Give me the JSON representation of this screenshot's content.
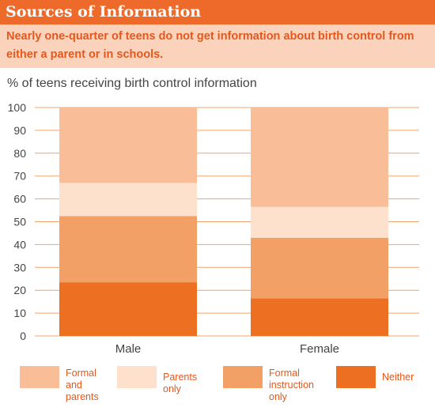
{
  "header": {
    "title": "Sources of Information",
    "subtitle": "Nearly one-quarter of teens do not get information about birth control from either a parent or in schools."
  },
  "colors": {
    "title_bar": "#ee6a2b",
    "subtitle_bg": "#fbd3bd",
    "subtitle_text": "#e4581c",
    "grid": "#f0a36f"
  },
  "chart_data": {
    "type": "bar",
    "stacked": true,
    "title": "% of teens receiving birth control information",
    "ylabel": "% of teens receiving birth control information",
    "xlabel": "",
    "categories": [
      "Male",
      "Female"
    ],
    "ylim": [
      0,
      100
    ],
    "yticks": [
      0,
      10,
      20,
      30,
      40,
      50,
      60,
      70,
      80,
      90,
      100
    ],
    "grid": true,
    "legend_position": "bottom",
    "series": [
      {
        "name": "Neither",
        "values": [
          23.5,
          16.5
        ],
        "color": "#ec6f22"
      },
      {
        "name": "Formal instruction only",
        "values": [
          29,
          26.5
        ],
        "color": "#f2a066"
      },
      {
        "name": "Parents only",
        "values": [
          14.5,
          13.5
        ],
        "color": "#fde1cc"
      },
      {
        "name": "Formal and parents",
        "values": [
          33,
          43.5
        ],
        "color": "#f9be97"
      }
    ]
  },
  "legend": [
    {
      "label": "Formal and\nparents",
      "color": "#f9be97"
    },
    {
      "label": "Parents only",
      "color": "#fde1cc"
    },
    {
      "label": "Formal\ninstruction only",
      "color": "#f2a066"
    },
    {
      "label": "Neither",
      "color": "#ec6f22"
    }
  ]
}
